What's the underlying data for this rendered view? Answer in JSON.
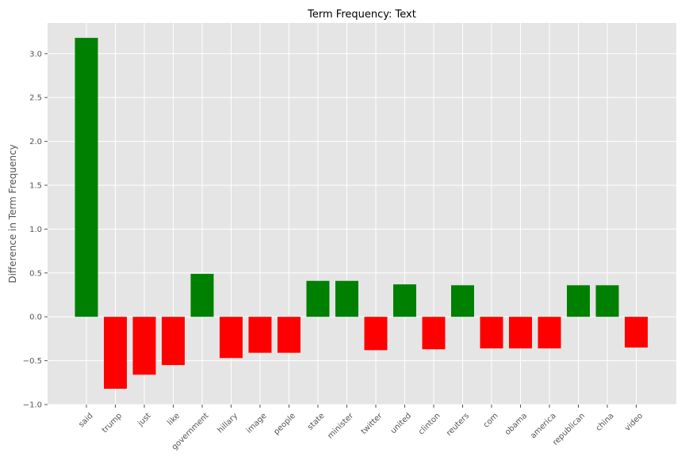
{
  "chart_data": {
    "type": "bar",
    "title": "Term Frequency: Text",
    "xlabel": "",
    "ylabel": "Difference in Term Frequency",
    "ylim": [
      -1.0,
      3.35
    ],
    "yticks": [
      "−1.0",
      "−0.5",
      "0.0",
      "0.5",
      "1.0",
      "1.5",
      "2.0",
      "2.5",
      "3.0"
    ],
    "ytick_values": [
      -1.0,
      -0.5,
      0.0,
      0.5,
      1.0,
      1.5,
      2.0,
      2.5,
      3.0
    ],
    "categories": [
      "said",
      "trump",
      "just",
      "like",
      "government",
      "hillary",
      "image",
      "people",
      "state",
      "minister",
      "twitter",
      "united",
      "clinton",
      "reuters",
      "com",
      "obama",
      "america",
      "republican",
      "china",
      "video"
    ],
    "values": [
      3.18,
      -0.82,
      -0.66,
      -0.55,
      0.49,
      -0.47,
      -0.41,
      -0.41,
      0.41,
      0.41,
      -0.38,
      0.37,
      -0.37,
      0.36,
      -0.36,
      -0.36,
      -0.36,
      0.36,
      0.36,
      -0.35
    ],
    "grid": true,
    "colors": {
      "positive": "#008000",
      "negative": "#ff0000",
      "background": "#e5e5e5",
      "grid": "#ffffff"
    }
  }
}
